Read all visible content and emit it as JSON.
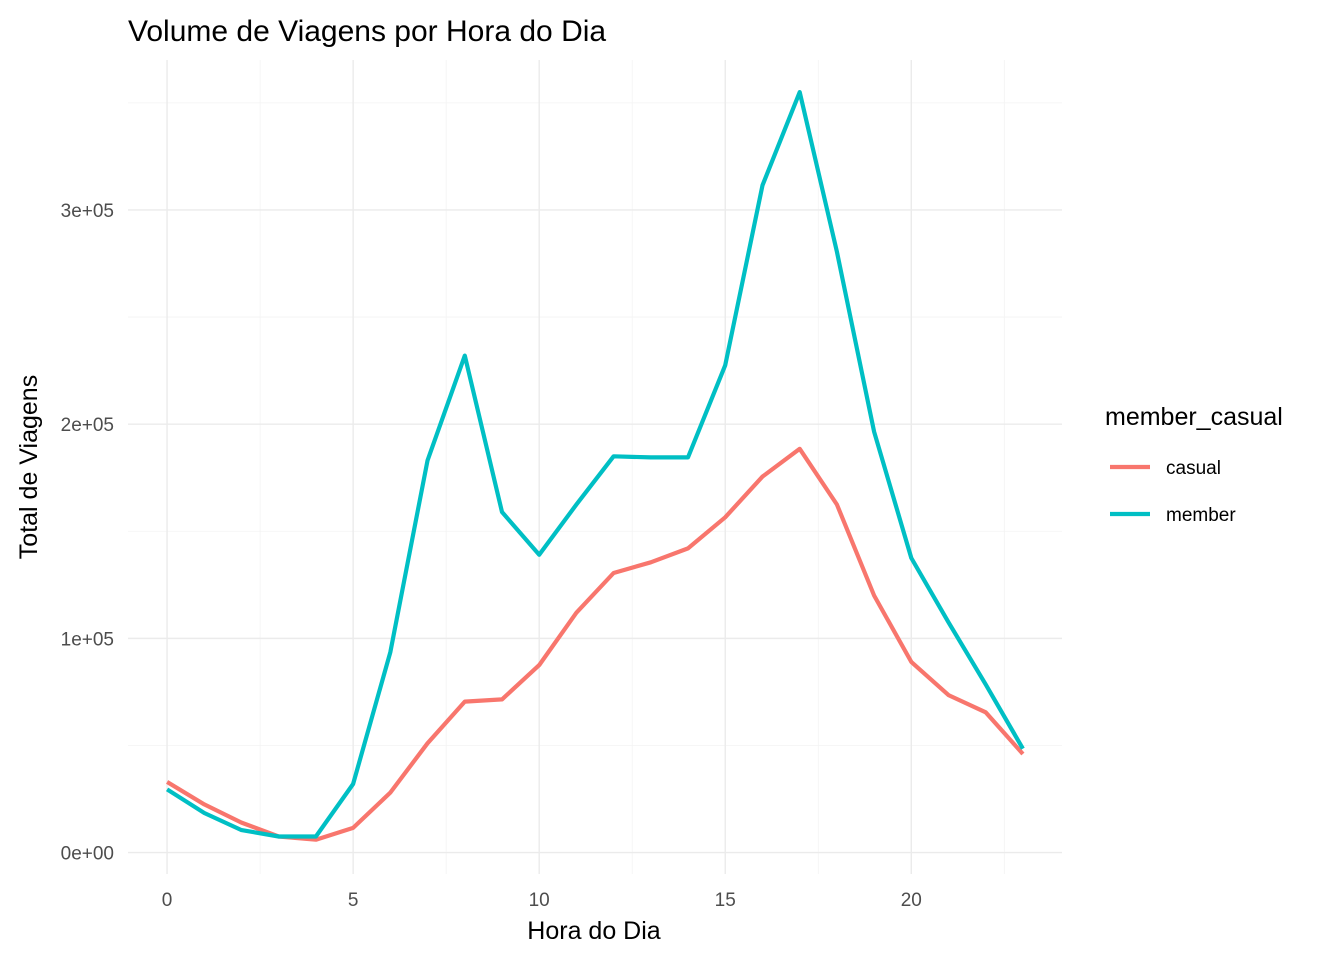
{
  "chart_data": {
    "type": "line",
    "title": "Volume de Viagens por Hora do Dia",
    "xlabel": "Hora do Dia",
    "ylabel": "Total de Viagens",
    "x": [
      0,
      1,
      2,
      3,
      4,
      5,
      6,
      7,
      8,
      9,
      10,
      11,
      12,
      13,
      14,
      15,
      16,
      17,
      18,
      19,
      20,
      21,
      22,
      23
    ],
    "xlim": [
      -1.05,
      24.05
    ],
    "ylim": [
      -10000,
      370000
    ],
    "x_ticks": [
      0,
      5,
      10,
      15,
      20
    ],
    "x_tick_labels": [
      "0",
      "5",
      "10",
      "15",
      "20"
    ],
    "y_ticks": [
      0,
      100000,
      200000,
      300000
    ],
    "y_tick_labels": [
      "0e+00",
      "1e+05",
      "2e+05",
      "3e+05"
    ],
    "grid": true,
    "legend": {
      "title": "member_casual",
      "position": "right"
    },
    "series": [
      {
        "name": "casual",
        "color": "#F8766D",
        "values": [
          33000,
          22500,
          14000,
          7500,
          6000,
          11500,
          28000,
          51000,
          70500,
          71500,
          87500,
          112000,
          130500,
          135500,
          142000,
          156500,
          175500,
          188500,
          162500,
          120000,
          89000,
          73500,
          65500,
          46000
        ]
      },
      {
        "name": "member",
        "color": "#00BFC4",
        "values": [
          29500,
          18500,
          10500,
          7500,
          7500,
          32000,
          93500,
          183000,
          232000,
          159000,
          139000,
          162500,
          185000,
          184500,
          184500,
          227500,
          311500,
          355000,
          280500,
          196500,
          137500,
          107500,
          78500,
          48500
        ]
      }
    ]
  }
}
